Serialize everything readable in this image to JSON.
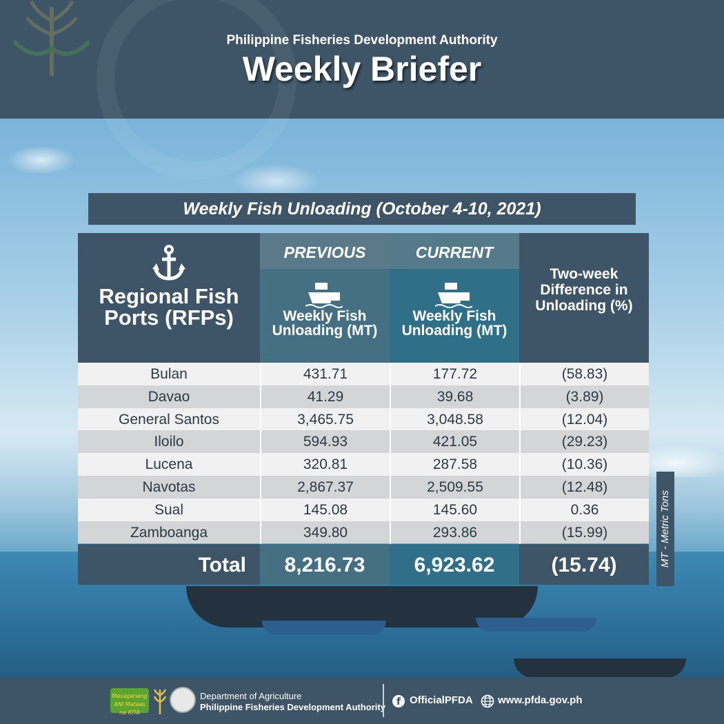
{
  "header": {
    "organization": "Philippine Fisheries Development Authority",
    "title": "Weekly Briefer"
  },
  "banner": {
    "title": "Weekly Fish Unloading (October 4-10, 2021)"
  },
  "table": {
    "rfp_header": "Regional Fish Ports (RFPs)",
    "previous_label": "PREVIOUS",
    "current_label": "CURRENT",
    "unloading_label": "Weekly Fish Unloading (MT)",
    "diff_label": "Two-week Difference in Unloading (%)",
    "rows": [
      {
        "port": "Bulan",
        "previous": "431.71",
        "current": "177.72",
        "diff": "(58.83)"
      },
      {
        "port": "Davao",
        "previous": "41.29",
        "current": "39.68",
        "diff": "(3.89)"
      },
      {
        "port": "General Santos",
        "previous": "3,465.75",
        "current": "3,048.58",
        "diff": "(12.04)"
      },
      {
        "port": "Iloilo",
        "previous": "594.93",
        "current": "421.05",
        "diff": "(29.23)"
      },
      {
        "port": "Lucena",
        "previous": "320.81",
        "current": "287.58",
        "diff": "(10.36)"
      },
      {
        "port": "Navotas",
        "previous": "2,867.37",
        "current": "2,509.55",
        "diff": "(12.48)"
      },
      {
        "port": "Sual",
        "previous": "145.08",
        "current": "145.60",
        "diff": "0.36"
      },
      {
        "port": "Zamboanga",
        "previous": "349.80",
        "current": "293.86",
        "diff": "(15.99)"
      }
    ],
    "total": {
      "label": "Total",
      "previous": "8,216.73",
      "current": "6,923.62",
      "diff": "(15.74)"
    }
  },
  "side_note": "MT - Metric Tons",
  "footer": {
    "logo_text": "Masaganang ANI Mataas na KITA",
    "dept_line1": "Department of Agriculture",
    "dept_line2": "Philippine Fisheries Development Authority",
    "facebook": "OfficialPFDA",
    "website": "www.pfda.gov.ph"
  },
  "icons": [
    "anchor-icon",
    "ship-icon",
    "facebook-icon",
    "globe-icon",
    "wheat-icon",
    "seal-icon"
  ]
}
